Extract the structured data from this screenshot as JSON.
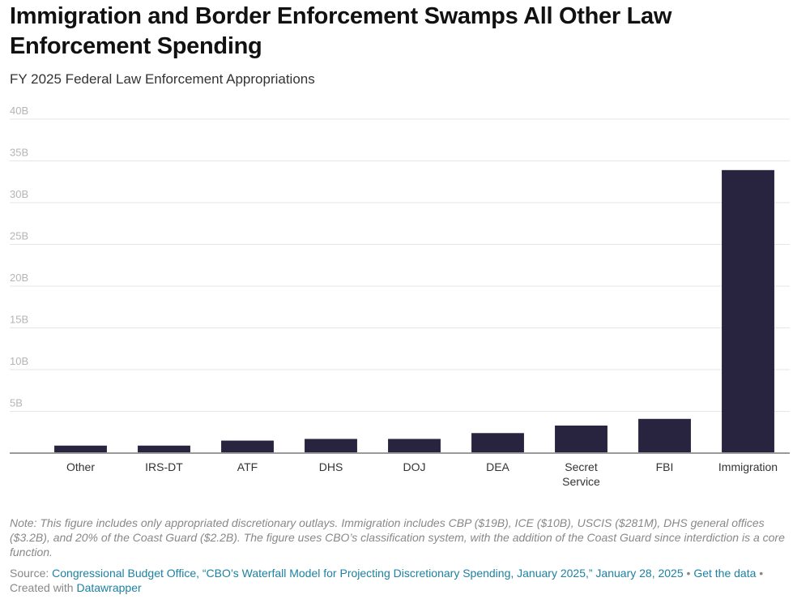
{
  "header": {
    "title": "Immigration and Border Enforcement Swamps All Other Law Enforcement Spending",
    "subtitle": "FY 2025 Federal Law Enforcement Appropriations"
  },
  "chart_data": {
    "type": "bar",
    "title": "Immigration and Border Enforcement Swamps All Other Law Enforcement Spending",
    "subtitle": "FY 2025 Federal Law Enforcement Appropriations",
    "xlabel": "",
    "ylabel": "",
    "categories": [
      "Other",
      "IRS-DT",
      "ATF",
      "DHS",
      "DOJ",
      "DEA",
      "Secret Service",
      "FBI",
      "Immigration"
    ],
    "category_lines": [
      [
        "Other"
      ],
      [
        "IRS-DT"
      ],
      [
        "ATF"
      ],
      [
        "DHS"
      ],
      [
        "DOJ"
      ],
      [
        "DEA"
      ],
      [
        "Secret",
        "Service"
      ],
      [
        "FBI"
      ],
      [
        "Immigration"
      ]
    ],
    "values": [
      0.9,
      0.9,
      1.5,
      1.7,
      1.7,
      2.4,
      3.3,
      4.1,
      33.9
    ],
    "unit": "billions USD",
    "ylim": [
      0,
      40
    ],
    "yticks": [
      0,
      5,
      10,
      15,
      20,
      25,
      30,
      35,
      40
    ],
    "ytick_labels": [
      "",
      "5B",
      "10B",
      "15B",
      "20B",
      "25B",
      "30B",
      "35B",
      "40B"
    ],
    "grid": true,
    "bar_color": "#282440",
    "legend": "none"
  },
  "footer": {
    "note": "Note: This figure includes only appropriated discretionary outlays. Immigration includes CBP ($19B), ICE ($10B), USCIS ($281M), DHS general offices ($3.2B), and 20% of the Coast Guard ($2.2B). The figure uses CBO’s classification system, with the addition of the Coast Guard since interdiction is a core function.",
    "source_prefix": "Source: ",
    "source_link": "Congressional Budget Office, “CBO’s Waterfall Model for Projecting Discretionary Spending, January 2025,” January 28, 2025",
    "separator1": " • ",
    "get_data_link": "Get the data",
    "created_with": " • Created with ",
    "datawrapper_link": "Datawrapper"
  }
}
